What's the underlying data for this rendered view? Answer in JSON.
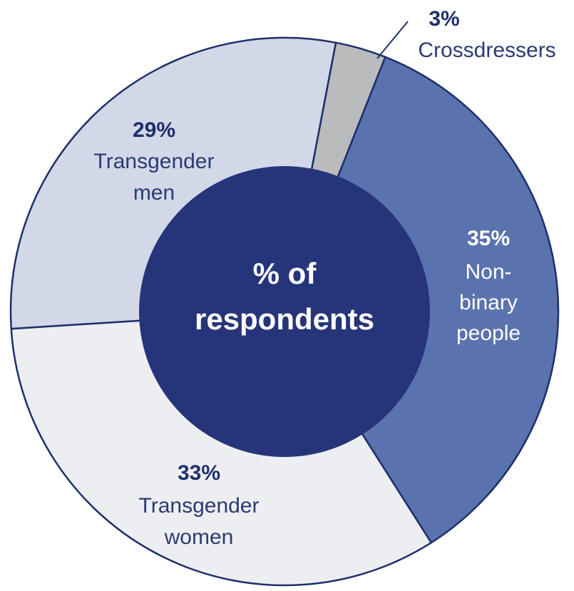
{
  "chart_data": {
    "type": "pie",
    "center_label": [
      "% of",
      "respondents"
    ],
    "colors": {
      "outline": "#1e2f6b",
      "center": "#26357a"
    },
    "slices": [
      {
        "label_lines": [
          "Crossdressers"
        ],
        "value_text": "3%",
        "value": 3,
        "color": "#b9bbbd"
      },
      {
        "label_lines": [
          "Non-",
          "binary",
          "people"
        ],
        "value_text": "35%",
        "value": 35,
        "color": "#5a72ad"
      },
      {
        "label_lines": [
          "Transgender",
          "women"
        ],
        "value_text": "33%",
        "value": 33,
        "color": "#edeef2"
      },
      {
        "label_lines": [
          "Transgender",
          "men"
        ],
        "value_text": "29%",
        "value": 29,
        "color": "#d3d8e8"
      }
    ]
  }
}
